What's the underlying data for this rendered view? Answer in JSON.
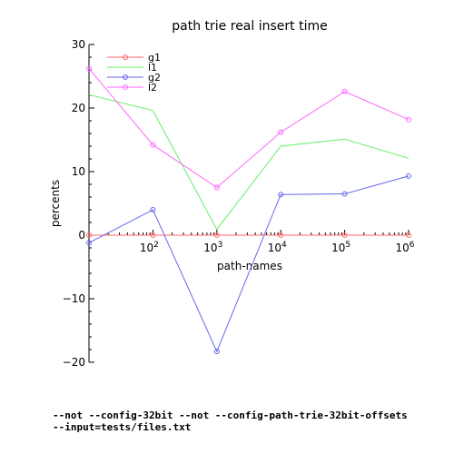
{
  "chart_data": {
    "type": "line",
    "title": "path trie real insert time",
    "xlabel": "path-names",
    "ylabel": "percents",
    "x_scale": "log",
    "x_ticks": [
      {
        "base": "10",
        "exp": "2",
        "value": 100
      },
      {
        "base": "10",
        "exp": "3",
        "value": 1000
      },
      {
        "base": "10",
        "exp": "4",
        "value": 10000
      },
      {
        "base": "10",
        "exp": "5",
        "value": 100000
      },
      {
        "base": "10",
        "exp": "6",
        "value": 1000000
      }
    ],
    "y_ticks": [
      "30",
      "20",
      "10",
      "0",
      "−10",
      "−20"
    ],
    "ylim": [
      -20,
      30
    ],
    "x": [
      10,
      100,
      1000,
      10000,
      100000,
      1000000
    ],
    "series": [
      {
        "name": "g1",
        "color": "#ff6666",
        "marker": "circle",
        "values": [
          0,
          0,
          0,
          0,
          0,
          0
        ]
      },
      {
        "name": "l1",
        "color": "#66ee66",
        "marker": "none",
        "values": [
          22.1,
          19.6,
          0.9,
          14.0,
          15.1,
          12.1
        ]
      },
      {
        "name": "g2",
        "color": "#6666ee",
        "marker": "circle",
        "values": [
          -1.2,
          4.0,
          -18.3,
          6.4,
          6.5,
          9.3
        ]
      },
      {
        "name": "l2",
        "color": "#ff66ff",
        "marker": "circle",
        "values": [
          26.2,
          14.2,
          7.5,
          16.2,
          22.6,
          18.2
        ]
      }
    ],
    "legend": "top-left",
    "grid": false,
    "zero_line": true
  },
  "footnotes": [
    "--not --config-32bit --not --config-path-trie-32bit-offsets",
    "--input=tests/files.txt"
  ]
}
